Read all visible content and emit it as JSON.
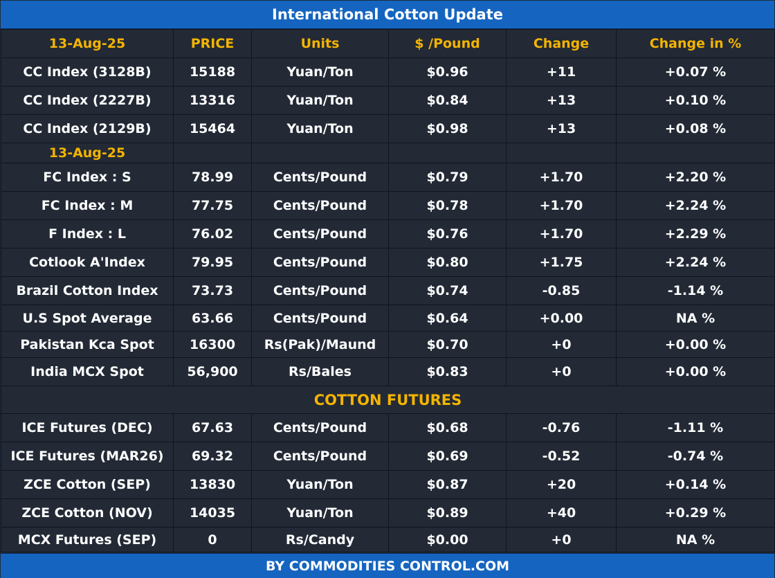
{
  "title": "International Cotton Update",
  "footer": "BY  COMMODITIES CONTROL.COM",
  "columns": [
    "13-Aug-25",
    "PRICE",
    "Units",
    "$ /Pound",
    "Change",
    "Change in %"
  ],
  "colors": {
    "title_bg": "#1565c0",
    "table_bg": "#232a36",
    "header_text": "#f4b400",
    "cell_text": "#ffffff"
  },
  "cc_rows": [
    {
      "name": "CC Index (3128B)",
      "price": "15188",
      "units": "Yuan/Ton",
      "usd": "$0.96",
      "change": "+11",
      "pct": "+0.07 %"
    },
    {
      "name": "CC Index (2227B)",
      "price": "13316",
      "units": "Yuan/Ton",
      "usd": "$0.84",
      "change": "+13",
      "pct": "+0.10 %"
    },
    {
      "name": "CC Index (2129B)",
      "price": "15464",
      "units": "Yuan/Ton",
      "usd": "$0.98",
      "change": "+13",
      "pct": "+0.08 %"
    }
  ],
  "section_date": "13-Aug-25",
  "index_rows": [
    {
      "name": "FC Index : S",
      "price": "78.99",
      "units": "Cents/Pound",
      "usd": "$0.79",
      "change": "+1.70",
      "pct": "+2.20 %"
    },
    {
      "name": "FC Index : M",
      "price": "77.75",
      "units": "Cents/Pound",
      "usd": "$0.78",
      "change": "+1.70",
      "pct": "+2.24 %"
    },
    {
      "name": "F Index : L",
      "price": "76.02",
      "units": "Cents/Pound",
      "usd": "$0.76",
      "change": "+1.70",
      "pct": "+2.29 %"
    },
    {
      "name": "Cotlook A'Index",
      "price": "79.95",
      "units": "Cents/Pound",
      "usd": "$0.80",
      "change": "+1.75",
      "pct": "+2.24 %"
    },
    {
      "name": "Brazil Cotton Index",
      "price": "73.73",
      "units": "Cents/Pound",
      "usd": "$0.74",
      "change": "-0.85",
      "pct": "-1.14 %"
    },
    {
      "name": "U.S Spot Average",
      "price": "63.66",
      "units": "Cents/Pound",
      "usd": "$0.64",
      "change": "+0.00",
      "pct": "NA %"
    },
    {
      "name": "Pakistan Kca Spot",
      "price": "16300",
      "units": "Rs(Pak)/Maund",
      "usd": "$0.70",
      "change": "+0",
      "pct": "+0.00 %"
    },
    {
      "name": "India MCX Spot",
      "price": "56,900",
      "units": "Rs/Bales",
      "usd": "$0.83",
      "change": "+0",
      "pct": "+0.00 %"
    }
  ],
  "futures_title": "COTTON FUTURES",
  "futures_rows": [
    {
      "name": "ICE Futures (DEC)",
      "price": "67.63",
      "units": "Cents/Pound",
      "usd": "$0.68",
      "change": "-0.76",
      "pct": "-1.11 %"
    },
    {
      "name": "ICE Futures (MAR26)",
      "price": "69.32",
      "units": "Cents/Pound",
      "usd": "$0.69",
      "change": "-0.52",
      "pct": "-0.74 %"
    },
    {
      "name": "ZCE Cotton (SEP)",
      "price": "13830",
      "units": "Yuan/Ton",
      "usd": "$0.87",
      "change": "+20",
      "pct": "+0.14 %"
    },
    {
      "name": "ZCE Cotton (NOV)",
      "price": "14035",
      "units": "Yuan/Ton",
      "usd": "$0.89",
      "change": "+40",
      "pct": "+0.29 %"
    },
    {
      "name": "MCX Futures (SEP)",
      "price": "0",
      "units": "Rs/Candy",
      "usd": "$0.00",
      "change": "+0",
      "pct": "NA %"
    }
  ]
}
